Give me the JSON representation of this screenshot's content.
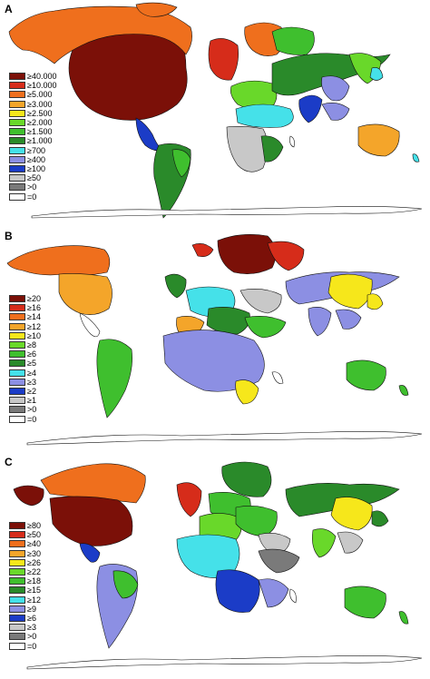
{
  "panels": [
    {
      "letter": "A",
      "legend": [
        {
          "label": "≥40.000",
          "color": "#7b1008"
        },
        {
          "label": "≥10.000",
          "color": "#d62c1a"
        },
        {
          "label": "≥5.000",
          "color": "#ef6f1d"
        },
        {
          "label": "≥3.000",
          "color": "#f4a52a"
        },
        {
          "label": "≥2.500",
          "color": "#f6e71b"
        },
        {
          "label": "≥2.000",
          "color": "#69d82a"
        },
        {
          "label": "≥1.500",
          "color": "#3fbf2e"
        },
        {
          "label": "≥1.000",
          "color": "#2a8a2a"
        },
        {
          "label": "≥700",
          "color": "#45e1e9"
        },
        {
          "label": "≥400",
          "color": "#8c8fe3"
        },
        {
          "label": "≥100",
          "color": "#1b3cc7"
        },
        {
          "label": "≥50",
          "color": "#c8c8c8"
        },
        {
          "label": ">0",
          "color": "#7a7a7a"
        },
        {
          "label": "=0",
          "color": "#ffffff"
        }
      ]
    },
    {
      "letter": "B",
      "legend": [
        {
          "label": "≥20",
          "color": "#7b1008"
        },
        {
          "label": "≥16",
          "color": "#d62c1a"
        },
        {
          "label": "≥14",
          "color": "#ef6f1d"
        },
        {
          "label": "≥12",
          "color": "#f4a52a"
        },
        {
          "label": "≥10",
          "color": "#f6e71b"
        },
        {
          "label": "≥8",
          "color": "#69d82a"
        },
        {
          "label": "≥6",
          "color": "#3fbf2e"
        },
        {
          "label": "≥5",
          "color": "#2a8a2a"
        },
        {
          "label": "≥4",
          "color": "#45e1e9"
        },
        {
          "label": "≥3",
          "color": "#8c8fe3"
        },
        {
          "label": "≥2",
          "color": "#1b3cc7"
        },
        {
          "label": "≥1",
          "color": "#c8c8c8"
        },
        {
          "label": ">0",
          "color": "#7a7a7a"
        },
        {
          "label": "=0",
          "color": "#ffffff"
        }
      ]
    },
    {
      "letter": "C",
      "legend": [
        {
          "label": "≥80",
          "color": "#7b1008"
        },
        {
          "label": "≥50",
          "color": "#d62c1a"
        },
        {
          "label": "≥40",
          "color": "#ef6f1d"
        },
        {
          "label": "≥30",
          "color": "#f4a52a"
        },
        {
          "label": "≥26",
          "color": "#f6e71b"
        },
        {
          "label": "≥22",
          "color": "#69d82a"
        },
        {
          "label": "≥18",
          "color": "#3fbf2e"
        },
        {
          "label": "≥15",
          "color": "#2a8a2a"
        },
        {
          "label": "≥12",
          "color": "#45e1e9"
        },
        {
          "label": "≥9",
          "color": "#8c8fe3"
        },
        {
          "label": "≥6",
          "color": "#1b3cc7"
        },
        {
          "label": "≥3",
          "color": "#c8c8c8"
        },
        {
          "label": ">0",
          "color": "#7a7a7a"
        },
        {
          "label": "=0",
          "color": "#ffffff"
        }
      ]
    }
  ]
}
